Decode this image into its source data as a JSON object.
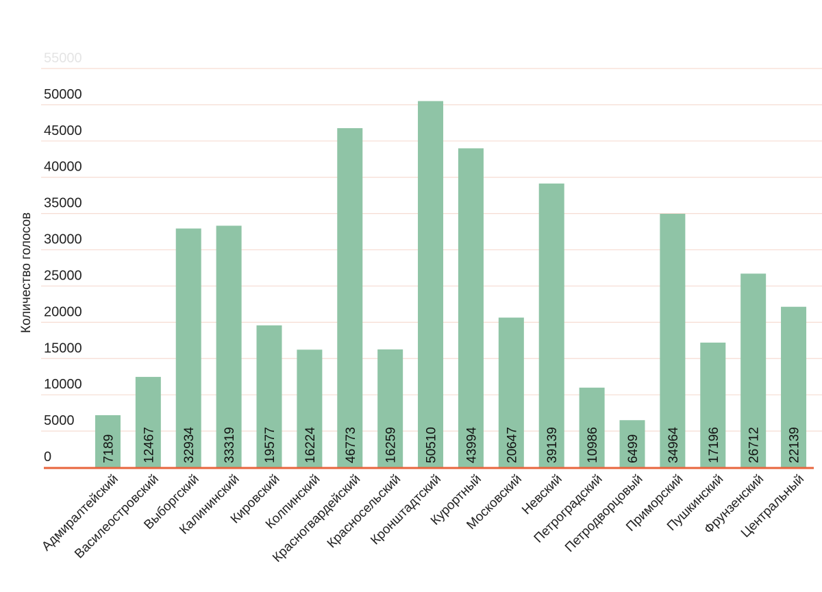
{
  "chart_data": {
    "type": "bar",
    "ylabel": "Количество голосов",
    "xlabel": "",
    "title": "",
    "ylim": [
      0,
      55000
    ],
    "yticks": [
      0,
      5000,
      10000,
      15000,
      20000,
      25000,
      30000,
      35000,
      40000,
      45000,
      50000,
      55000
    ],
    "grid": true,
    "legend": "none",
    "bar_color": "#8fc4a6",
    "grid_color": "#f6dcd2",
    "axis_color": "#e8643c",
    "categories": [
      "Адмиралтейский",
      "Василеостровский",
      "Выборгский",
      "Калининский",
      "Кировский",
      "Колпинский",
      "Красногвардейский",
      "Красносельский",
      "Кронштадтский",
      "Курортный",
      "Московский",
      "Невский",
      "Петроградский",
      "Петродворцовый",
      "Приморский",
      "Пушкинский",
      "Фрунзенский",
      "Центральный"
    ],
    "values": [
      7189,
      12467,
      32934,
      33319,
      19577,
      16224,
      46773,
      16259,
      50510,
      43994,
      20647,
      39139,
      10986,
      6499,
      34964,
      17196,
      26712,
      22139
    ]
  }
}
